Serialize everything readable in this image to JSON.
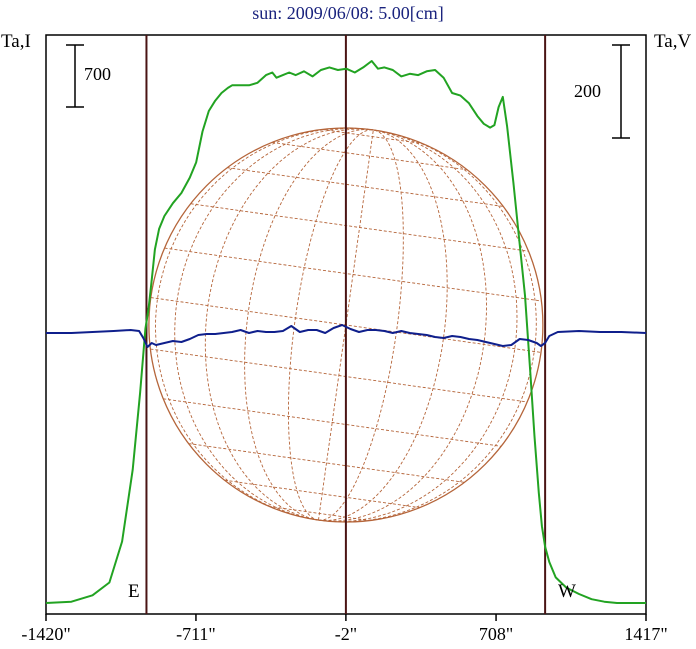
{
  "chart_data": {
    "type": "line",
    "title": "sun: 2009/06/08: 5.00[cm]",
    "left_axis_label": "Ta,I",
    "right_axis_label": "Ta,V",
    "x_tick_labels": [
      "-1420\"",
      "-711\"",
      "-2\"",
      "708\"",
      "1417\""
    ],
    "x_ticks": [
      -1420,
      -711,
      -2,
      708,
      1417
    ],
    "xlim": [
      -1420,
      1417
    ],
    "disk_limb_labels": {
      "east": "E",
      "west": "W"
    },
    "limb_positions": [
      -945,
      940
    ],
    "scale_bars": [
      {
        "label": "700",
        "axis": "Ta,I"
      },
      {
        "label": "200",
        "axis": "Ta,V"
      }
    ],
    "background": "#ffffff",
    "frame_color": "#000000",
    "limb_line_color": "#4a1414",
    "grid_color": "#b5653a",
    "series": [
      {
        "name": "Ta,I",
        "color": "#22a322",
        "x": [
          -1420,
          -1300,
          -1200,
          -1120,
          -1060,
          -1010,
          -975,
          -950,
          -935,
          -920,
          -905,
          -885,
          -860,
          -820,
          -780,
          -740,
          -710,
          -680,
          -650,
          -620,
          -590,
          -560,
          -540,
          -500,
          -460,
          -420,
          -380,
          -350,
          -330,
          -300,
          -270,
          -240,
          -200,
          -160,
          -120,
          -80,
          -40,
          0,
          40,
          80,
          120,
          150,
          180,
          220,
          260,
          300,
          340,
          380,
          420,
          460,
          500,
          540,
          580,
          620,
          650,
          680,
          700,
          720,
          740,
          760,
          790,
          820,
          845,
          870,
          890,
          910,
          925,
          940,
          960,
          990,
          1040,
          1100,
          1160,
          1220,
          1280,
          1340,
          1417
        ],
        "values": [
          0,
          5,
          30,
          80,
          240,
          520,
          820,
          1070,
          1150,
          1260,
          1380,
          1460,
          1510,
          1560,
          1600,
          1660,
          1720,
          1840,
          1920,
          1960,
          1990,
          2010,
          2020,
          2020,
          2020,
          2030,
          2060,
          2070,
          2050,
          2060,
          2070,
          2060,
          2075,
          2055,
          2080,
          2090,
          2080,
          2085,
          2070,
          2090,
          2115,
          2085,
          2090,
          2080,
          2055,
          2065,
          2060,
          2075,
          2080,
          2050,
          1990,
          1980,
          1950,
          1900,
          1870,
          1855,
          1865,
          1935,
          1975,
          1860,
          1640,
          1400,
          1200,
          900,
          650,
          430,
          300,
          220,
          160,
          100,
          60,
          35,
          15,
          5,
          0,
          0,
          0
        ]
      },
      {
        "name": "Ta,V",
        "color": "#0f1f8c",
        "x": [
          -1420,
          -1300,
          -1200,
          -1100,
          -1020,
          -980,
          -960,
          -940,
          -920,
          -900,
          -860,
          -820,
          -780,
          -740,
          -700,
          -660,
          -620,
          -580,
          -540,
          -500,
          -460,
          -420,
          -380,
          -340,
          -300,
          -260,
          -220,
          -180,
          -140,
          -100,
          -60,
          -20,
          20,
          60,
          100,
          140,
          180,
          220,
          260,
          300,
          340,
          380,
          420,
          460,
          500,
          540,
          580,
          620,
          660,
          700,
          740,
          780,
          820,
          860,
          900,
          920,
          940,
          960,
          1000,
          1100,
          1200,
          1300,
          1417
        ],
        "values": [
          0,
          0,
          1,
          2,
          3,
          2,
          -5,
          -14,
          -10,
          -12,
          -10,
          -8,
          -9,
          -6,
          -2,
          -1,
          -1,
          0,
          1,
          3,
          0,
          2,
          1,
          1,
          2,
          7,
          1,
          3,
          3,
          0,
          5,
          8,
          4,
          1,
          3,
          3,
          2,
          0,
          2,
          0,
          -1,
          -2,
          -4,
          -5,
          -3,
          -4,
          -6,
          -7,
          -9,
          -11,
          -13,
          -12,
          -6,
          -7,
          -10,
          -13,
          -10,
          -3,
          1,
          2,
          1,
          1,
          0
        ]
      }
    ]
  }
}
